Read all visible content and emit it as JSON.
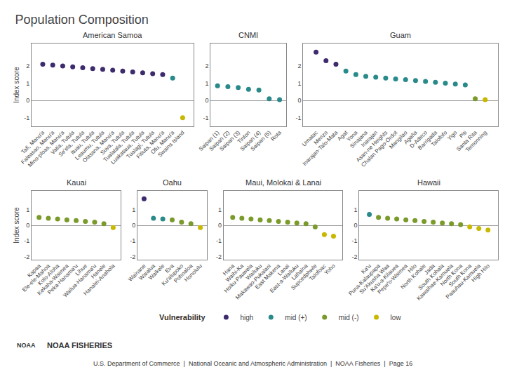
{
  "title": "Population Composition",
  "annotations": [
    "Vulnerability",
    "NOAA",
    "NOAA FISHERIES",
    "U.S. Department of Commerce  |  National Oceanic and Atmospheric Administration  |  NOAA Fisheries  |  Page 16"
  ],
  "chart_data": [
    {
      "type": "scatter",
      "title": "American Samoa",
      "ylabel": "Index score",
      "categories": [
        "Tafi, Manu'a",
        "Faleasao, Manu'a",
        "Mino-ploas, Manu'a",
        "Vatia, Tutula",
        "Se'ela, Tutula",
        "Ituau, Tutula",
        "Leaumu, Tutula",
        "Olasana, Manu'a",
        "Suva, Tutula",
        "Tualatala, Tutula",
        "Luakataua, Tutula",
        "Tualagi, Tutula",
        "Fitiuta, Manu'a",
        "Ofu, Manu'a",
        "Swains Island"
      ],
      "series": [
        {
          "name": "high",
          "color": "#3d2b6e",
          "values": [
            2.1,
            2.05,
            2.0,
            1.95,
            1.9,
            1.85,
            1.8,
            1.75,
            1.7,
            1.65,
            1.6,
            1.55,
            1.5,
            null,
            null
          ]
        },
        {
          "name": "mid (+)",
          "color": "#2a8a8a",
          "values": [
            null,
            null,
            null,
            null,
            null,
            null,
            null,
            null,
            null,
            null,
            null,
            null,
            null,
            1.3,
            null
          ]
        },
        {
          "name": "low",
          "color": "#c8b800",
          "values": [
            null,
            null,
            null,
            null,
            null,
            null,
            null,
            null,
            null,
            null,
            null,
            null,
            null,
            null,
            -1.0
          ]
        }
      ],
      "ylim": [
        -1.5,
        3.3
      ],
      "yticks": [
        -1,
        0,
        1,
        2
      ],
      "grid": false
    },
    {
      "type": "scatter",
      "title": "CNMI",
      "categories": [
        "Saipan (1)",
        "Saipan (2)",
        "Saipan (3)",
        "Tinton",
        "Saipan (4)",
        "Saipan (5)",
        "Rota"
      ],
      "series": [
        {
          "name": "mid (+)",
          "color": "#2a8a8a",
          "values": [
            0.85,
            0.8,
            0.75,
            0.65,
            0.6,
            0.1,
            0.05
          ]
        }
      ],
      "ylim": [
        -1.5,
        3.3
      ],
      "yticks": [
        -1,
        0,
        1,
        2
      ],
      "grid": false
    },
    {
      "type": "scatter",
      "title": "Guam",
      "categories": [
        "Umatac",
        "Merizo",
        "Inarajan-Talo-Mata",
        "Agat",
        "Yona",
        "Sinajana",
        "Inarajan",
        "Asan-ne Heights",
        "Chalan Pago-Ordot",
        "Mangilao",
        "Agaña",
        "D-Adeco",
        "Barrigada",
        "Talofofo",
        "Yigo",
        "Piti",
        "Santa Rita",
        "Temonning"
      ],
      "series": [
        {
          "name": "high",
          "color": "#3d2b6e",
          "values": [
            2.8,
            2.3,
            2.1,
            null,
            null,
            null,
            null,
            null,
            null,
            null,
            null,
            null,
            null,
            null,
            null,
            null,
            null,
            null
          ]
        },
        {
          "name": "mid (+)",
          "color": "#2a8a8a",
          "values": [
            null,
            null,
            null,
            1.7,
            1.5,
            1.4,
            1.35,
            1.3,
            1.25,
            1.2,
            1.15,
            1.1,
            1.05,
            1.0,
            0.95,
            0.9,
            null,
            null
          ]
        },
        {
          "name": "mid (-)",
          "color": "#7a9a2a",
          "values": [
            null,
            null,
            null,
            null,
            null,
            null,
            null,
            null,
            null,
            null,
            null,
            null,
            null,
            null,
            null,
            null,
            0.1,
            null
          ]
        },
        {
          "name": "low",
          "color": "#c8b800",
          "values": [
            null,
            null,
            null,
            null,
            null,
            null,
            null,
            null,
            null,
            null,
            null,
            null,
            null,
            null,
            null,
            null,
            null,
            0.05
          ]
        }
      ],
      "ylim": [
        -1.5,
        3.3
      ],
      "yticks": [
        -1,
        0,
        1,
        2
      ],
      "grid": false
    },
    {
      "type": "scatter",
      "title": "Kauai",
      "ylabel": "Index score",
      "categories": [
        "Kapaa",
        "Ele-ele-Mahoa",
        "Kolo-Aloha",
        "Kekaha-Waimea",
        "Peka-Hanama'u",
        "Lihue",
        "Wailua-Hanama'u",
        "Hanele",
        "Hanalei-Anahola"
      ],
      "series": [
        {
          "name": "mid (-)",
          "color": "#7a9a2a",
          "values": [
            0.5,
            0.45,
            0.4,
            0.35,
            0.3,
            0.25,
            0.2,
            0.1,
            null
          ]
        },
        {
          "name": "low",
          "color": "#c8b800",
          "values": [
            null,
            null,
            null,
            null,
            null,
            null,
            null,
            null,
            -0.15
          ]
        }
      ],
      "ylim": [
        -2.2,
        2.2
      ],
      "yticks": [
        -2,
        -1,
        0,
        1
      ],
      "grid": false
    },
    {
      "type": "scatter",
      "title": "Oahu",
      "categories": [
        "Wainane",
        "Waialua",
        "Waikele",
        "Eva",
        "Ku'alupoko",
        "Pohnaloa",
        "Honolulu"
      ],
      "series": [
        {
          "name": "high",
          "color": "#3d2b6e",
          "values": [
            1.7,
            null,
            null,
            null,
            null,
            null,
            null
          ]
        },
        {
          "name": "mid (+)",
          "color": "#2a8a8a",
          "values": [
            null,
            0.45,
            0.4,
            null,
            null,
            null,
            null
          ]
        },
        {
          "name": "mid (-)",
          "color": "#7a9a2a",
          "values": [
            null,
            null,
            null,
            0.35,
            0.2,
            0.1,
            null
          ]
        },
        {
          "name": "low",
          "color": "#c8b800",
          "values": [
            null,
            null,
            null,
            null,
            null,
            null,
            -0.15
          ]
        }
      ],
      "ylim": [
        -2.2,
        2.2
      ],
      "yticks": [
        -2,
        -1,
        0,
        1
      ],
      "grid": false
    },
    {
      "type": "scatter",
      "title": "Maui, Molokai & Lanai",
      "categories": [
        "Hana",
        "Waihi-Ka",
        "Hoiku-Pauwela",
        "Wailuku",
        "Makawao-Pukalani",
        "East Makena",
        "Lanai",
        "East-a-Wailuku",
        "Lahaina",
        "Supcedphwle",
        "Talofoac",
        "Yoho"
      ],
      "series": [
        {
          "name": "mid (-)",
          "color": "#7a9a2a",
          "values": [
            0.5,
            0.45,
            0.4,
            0.35,
            0.3,
            0.25,
            0.2,
            0.15,
            0.1,
            -0.1,
            null,
            null
          ]
        },
        {
          "name": "low",
          "color": "#c8b800",
          "values": [
            null,
            null,
            null,
            null,
            null,
            null,
            null,
            null,
            null,
            null,
            -0.6,
            -0.7
          ]
        }
      ],
      "ylim": [
        -2.2,
        2.2
      ],
      "yticks": [
        -2,
        -1,
        0,
        1
      ],
      "grid": false
    },
    {
      "type": "scatter",
      "title": "Hawaii",
      "categories": [
        "Ka'u",
        "Puna-Kalaupapa",
        "Su'Akusha Waa",
        "Ka'u-a-Kilauea",
        "Pepe'o-Waimea",
        "Hilo",
        "North Kohale",
        "Jada",
        "South Kohala",
        "Kawaihae-Kamuela",
        "North Kona",
        "South Kona",
        "Paauhau-Kamuela",
        "High Hilo"
      ],
      "series": [
        {
          "name": "mid (+)",
          "color": "#2a8a8a",
          "values": [
            0.7,
            null,
            null,
            null,
            null,
            null,
            null,
            null,
            null,
            null,
            null,
            null,
            null,
            null
          ]
        },
        {
          "name": "mid (-)",
          "color": "#7a9a2a",
          "values": [
            null,
            0.5,
            0.45,
            0.4,
            0.35,
            0.3,
            0.25,
            0.2,
            0.15,
            0.1,
            0.05,
            null,
            null,
            null
          ]
        },
        {
          "name": "low",
          "color": "#c8b800",
          "values": [
            null,
            null,
            null,
            null,
            null,
            null,
            null,
            null,
            null,
            null,
            null,
            -0.1,
            -0.2,
            -0.3
          ]
        }
      ],
      "ylim": [
        -2.2,
        2.2
      ],
      "yticks": [
        -2,
        -1,
        0,
        1
      ],
      "grid": false
    }
  ]
}
